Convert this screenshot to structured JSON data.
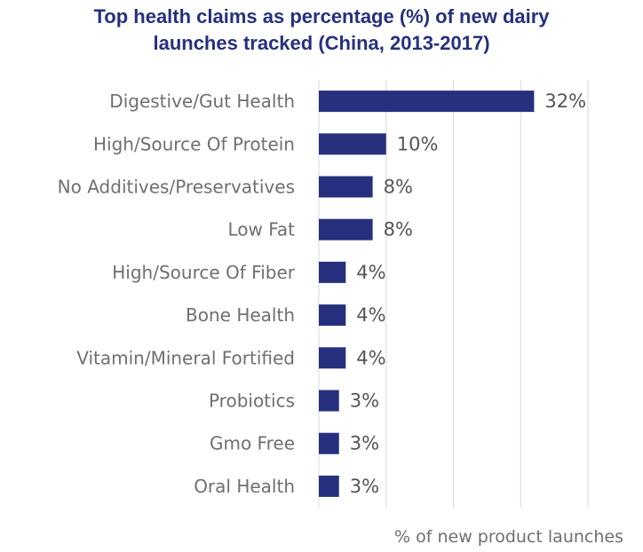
{
  "chart_data": {
    "type": "bar",
    "orientation": "horizontal",
    "title_lines": [
      "Top health claims as percentage (%) of new dairy",
      "launches tracked (China, 2013-2017)"
    ],
    "title": "Top health claims as percentage (%) of new dairy launches tracked (China, 2013-2017)",
    "categories": [
      "Digestive/Gut Health",
      "High/Source Of Protein",
      "No Additives/Preservatives",
      "Low Fat",
      "High/Source Of Fiber",
      "Bone Health",
      "Vitamin/Mineral Fortified",
      "Probiotics",
      "Gmo Free",
      "Oral Health"
    ],
    "values": [
      32,
      10,
      8,
      8,
      4,
      4,
      4,
      3,
      3,
      3
    ],
    "value_labels": [
      "32%",
      "10%",
      "8%",
      "8%",
      "4%",
      "4%",
      "4%",
      "3%",
      "3%",
      "3%"
    ],
    "xlabel": "% of new product launches",
    "ylabel": "",
    "xlim": [
      0,
      40
    ],
    "grid": true,
    "legend": "none",
    "colors": {
      "bar": "#26307e",
      "title": "#26307e",
      "grid": "#d9d9d9"
    }
  }
}
